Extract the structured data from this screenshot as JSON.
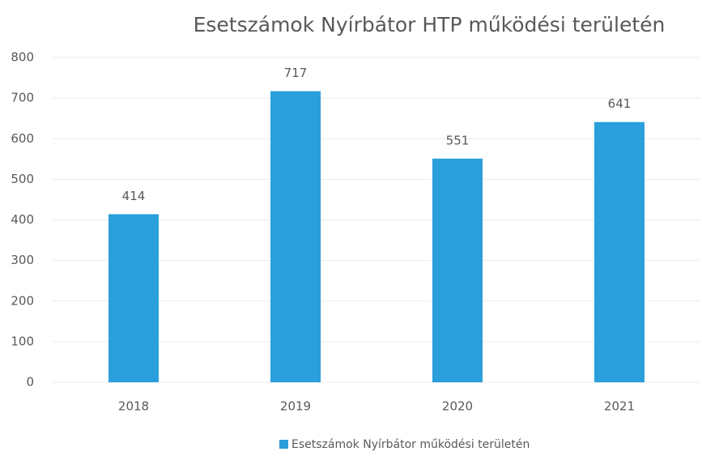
{
  "chart_data": {
    "type": "bar",
    "title": "Esetszámok Nyírbátor HTP működési területén",
    "categories": [
      "2018",
      "2019",
      "2020",
      "2021"
    ],
    "series": [
      {
        "name": "Esetszámok Nyírbátor működési területén",
        "color": "#2b9fdb",
        "values": [
          414,
          717,
          551,
          641
        ]
      }
    ],
    "ylim": [
      0,
      800
    ],
    "yticks": [
      0,
      100,
      200,
      300,
      400,
      500,
      600,
      700,
      800
    ],
    "grid": true,
    "legend": "bottom"
  }
}
